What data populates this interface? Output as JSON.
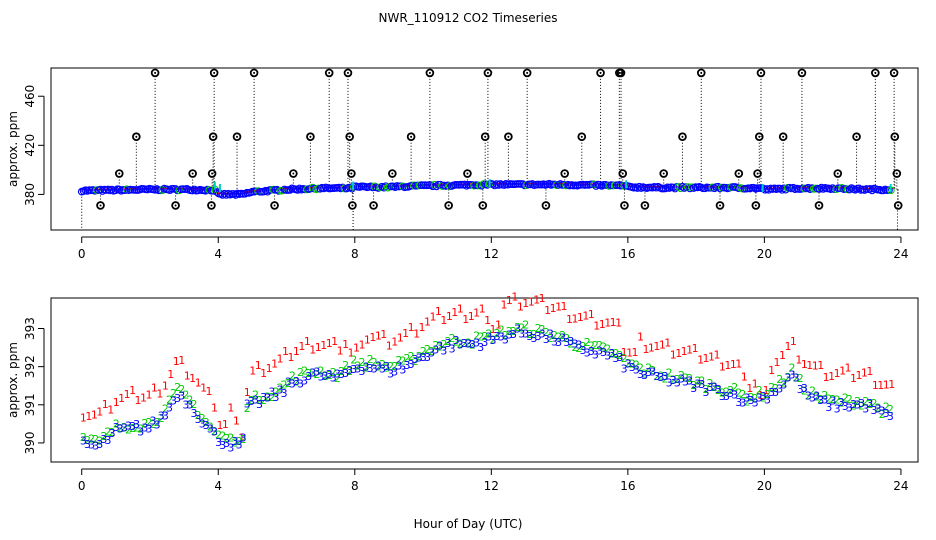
{
  "title": "NWR_110912  CO2 Timeseries",
  "xlabel": "Hour of Day (UTC)",
  "colors": {
    "series1": "#ff0000",
    "series2": "#00cc00",
    "series3": "#0000ff",
    "spikes": "#000000",
    "cyan": "#00cccc"
  },
  "chart_data": [
    {
      "type": "scatter",
      "ylabel": "approx. ppm",
      "xlim": [
        -0.9,
        24.5
      ],
      "ylim": [
        351,
        483
      ],
      "xticks": [
        0,
        4,
        8,
        12,
        16,
        20,
        24
      ],
      "yticks": [
        380,
        420,
        460
      ],
      "grid": false,
      "baseline": [
        [
          0,
          383
        ],
        [
          1,
          383.5
        ],
        [
          2,
          384
        ],
        [
          3,
          384
        ],
        [
          3.9,
          383.5
        ],
        [
          4,
          380
        ],
        [
          4.7,
          380
        ],
        [
          5,
          382
        ],
        [
          6,
          384
        ],
        [
          7,
          385
        ],
        [
          7.9,
          385
        ],
        [
          8,
          386
        ],
        [
          9,
          386
        ],
        [
          10,
          387
        ],
        [
          11,
          387.5
        ],
        [
          12,
          388
        ],
        [
          13,
          388
        ],
        [
          14,
          388
        ],
        [
          15,
          387.5
        ],
        [
          15.9,
          387
        ],
        [
          16,
          386
        ],
        [
          17,
          385.5
        ],
        [
          18,
          385.5
        ],
        [
          19,
          385.5
        ],
        [
          19.9,
          385
        ],
        [
          20,
          384
        ],
        [
          21,
          385
        ],
        [
          22,
          385
        ],
        [
          23,
          384
        ],
        [
          23.7,
          384
        ]
      ],
      "spikes": [
        {
          "x": 0.55,
          "y": 371
        },
        {
          "x": 1.1,
          "y": 397
        },
        {
          "x": 1.6,
          "y": 427
        },
        {
          "x": 2.15,
          "y": 479
        },
        {
          "x": 2.75,
          "y": 371
        },
        {
          "x": 3.25,
          "y": 397
        },
        {
          "x": 3.8,
          "y": 371
        },
        {
          "x": 3.82,
          "y": 397
        },
        {
          "x": 3.85,
          "y": 427
        },
        {
          "x": 3.88,
          "y": 479
        },
        {
          "x": 4.55,
          "y": 427
        },
        {
          "x": 5.05,
          "y": 479
        },
        {
          "x": 5.65,
          "y": 371
        },
        {
          "x": 6.2,
          "y": 397
        },
        {
          "x": 6.7,
          "y": 427
        },
        {
          "x": 7.25,
          "y": 479
        },
        {
          "x": 7.8,
          "y": 479
        },
        {
          "x": 7.85,
          "y": 427
        },
        {
          "x": 7.9,
          "y": 397
        },
        {
          "x": 7.93,
          "y": 371
        },
        {
          "x": 8.55,
          "y": 371
        },
        {
          "x": 9.1,
          "y": 397
        },
        {
          "x": 9.65,
          "y": 427
        },
        {
          "x": 10.2,
          "y": 479
        },
        {
          "x": 10.75,
          "y": 371
        },
        {
          "x": 11.3,
          "y": 397
        },
        {
          "x": 11.75,
          "y": 371
        },
        {
          "x": 11.82,
          "y": 427
        },
        {
          "x": 11.9,
          "y": 479
        },
        {
          "x": 12.5,
          "y": 427
        },
        {
          "x": 13.05,
          "y": 479
        },
        {
          "x": 13.6,
          "y": 371
        },
        {
          "x": 14.15,
          "y": 397
        },
        {
          "x": 14.65,
          "y": 427
        },
        {
          "x": 15.2,
          "y": 479
        },
        {
          "x": 15.75,
          "y": 479
        },
        {
          "x": 15.8,
          "y": 479
        },
        {
          "x": 15.85,
          "y": 397
        },
        {
          "x": 15.9,
          "y": 371
        },
        {
          "x": 16.5,
          "y": 371
        },
        {
          "x": 17.05,
          "y": 397
        },
        {
          "x": 17.6,
          "y": 427
        },
        {
          "x": 18.15,
          "y": 479
        },
        {
          "x": 18.7,
          "y": 371
        },
        {
          "x": 19.25,
          "y": 397
        },
        {
          "x": 19.75,
          "y": 371
        },
        {
          "x": 19.8,
          "y": 397
        },
        {
          "x": 19.85,
          "y": 427
        },
        {
          "x": 19.9,
          "y": 479
        },
        {
          "x": 20.55,
          "y": 427
        },
        {
          "x": 21.1,
          "y": 479
        },
        {
          "x": 21.6,
          "y": 371
        },
        {
          "x": 22.15,
          "y": 397
        },
        {
          "x": 22.7,
          "y": 427
        },
        {
          "x": 23.25,
          "y": 479
        },
        {
          "x": 23.8,
          "y": 479
        },
        {
          "x": 23.82,
          "y": 427
        },
        {
          "x": 23.88,
          "y": 397
        },
        {
          "x": 23.92,
          "y": 371
        }
      ]
    },
    {
      "type": "scatter",
      "ylabel": "approx. ppm",
      "xlim": [
        -0.9,
        24.5
      ],
      "ylim": [
        389.5,
        393.8
      ],
      "xticks": [
        0,
        4,
        8,
        12,
        16,
        20,
        24
      ],
      "yticks": [
        390,
        391,
        392,
        393
      ],
      "grid": false,
      "markers": [
        "1",
        "2",
        "3"
      ],
      "profile": [
        [
          0,
          390.0
        ],
        [
          0.5,
          389.9
        ],
        [
          1,
          390.3
        ],
        [
          1.5,
          390.4
        ],
        [
          2,
          390.4
        ],
        [
          2.5,
          390.8
        ],
        [
          2.8,
          391.3
        ],
        [
          3.2,
          391.0
        ],
        [
          3.6,
          390.5
        ],
        [
          4,
          390.1
        ],
        [
          4.5,
          389.95
        ],
        [
          4.7,
          389.8
        ],
        [
          4.8,
          390.9
        ],
        [
          5.2,
          391.1
        ],
        [
          5.8,
          391.3
        ],
        [
          6.2,
          391.6
        ],
        [
          6.8,
          391.8
        ],
        [
          7.5,
          391.7
        ],
        [
          8,
          392.0
        ],
        [
          8.5,
          392.0
        ],
        [
          9,
          391.9
        ],
        [
          9.5,
          392.0
        ],
        [
          10,
          392.3
        ],
        [
          10.5,
          392.5
        ],
        [
          11,
          392.6
        ],
        [
          11.5,
          392.6
        ],
        [
          12,
          392.7
        ],
        [
          12.5,
          392.85
        ],
        [
          13,
          392.9
        ],
        [
          13.5,
          392.8
        ],
        [
          14,
          392.7
        ],
        [
          14.5,
          392.5
        ],
        [
          15,
          392.4
        ],
        [
          15.5,
          392.3
        ],
        [
          16,
          392.0
        ],
        [
          16.5,
          391.8
        ],
        [
          17,
          391.7
        ],
        [
          17.5,
          391.6
        ],
        [
          18,
          391.5
        ],
        [
          18.5,
          391.4
        ],
        [
          19,
          391.3
        ],
        [
          19.5,
          391.1
        ],
        [
          20,
          391.2
        ],
        [
          20.5,
          391.5
        ],
        [
          20.8,
          391.8
        ],
        [
          21.2,
          391.3
        ],
        [
          21.6,
          391.1
        ],
        [
          22,
          391.0
        ],
        [
          22.5,
          391.0
        ],
        [
          23,
          391.0
        ],
        [
          23.4,
          390.8
        ],
        [
          23.8,
          390.65
        ]
      ],
      "offsets": [
        0.8,
        0.1,
        0.0
      ]
    }
  ]
}
